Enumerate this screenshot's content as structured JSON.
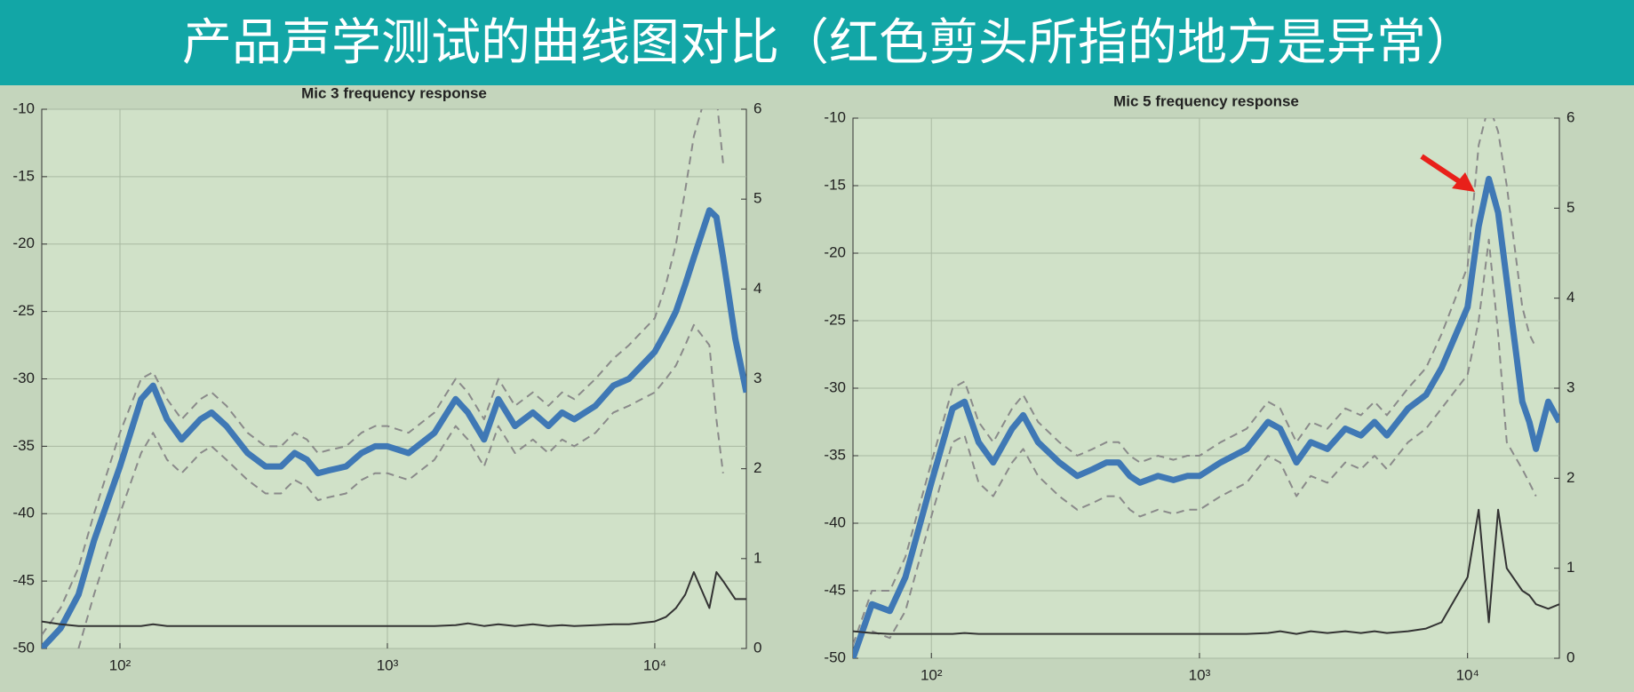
{
  "header": {
    "title": "产品声学测试的曲线图对比（红色剪头所指的地方是异常）"
  },
  "chart_data": [
    {
      "type": "line",
      "title": "Mic 3 frequency response",
      "log_x": true,
      "grid": true,
      "x": [
        51,
        60,
        70,
        80,
        100,
        120,
        133,
        150,
        170,
        200,
        220,
        250,
        300,
        350,
        400,
        450,
        500,
        550,
        600,
        700,
        800,
        900,
        1000,
        1200,
        1500,
        1800,
        2000,
        2300,
        2600,
        3000,
        3500,
        4000,
        4500,
        5000,
        6000,
        7000,
        8000,
        10000,
        11000,
        12000,
        13000,
        14000,
        16000,
        17000,
        18000,
        20000,
        22000
      ],
      "xlim": [
        51,
        22000
      ],
      "xticks": [
        {
          "value": 100,
          "label": "10²"
        },
        {
          "value": 1000,
          "label": "10³"
        },
        {
          "value": 10000,
          "label": "10⁴"
        }
      ],
      "ylim": [
        -50,
        -10
      ],
      "yticks": [
        -50,
        -45,
        -40,
        -35,
        -30,
        -25,
        -20,
        -15,
        -10
      ],
      "y2lim": [
        0,
        6
      ],
      "y2ticks": [
        0,
        1,
        2,
        3,
        4,
        5,
        6
      ],
      "series": [
        {
          "color": "#3f78b5",
          "dash": false,
          "values": [
            -50,
            -48.5,
            -46,
            -42,
            -36.5,
            -31.5,
            -30.5,
            -33,
            -34.5,
            -33,
            -32.5,
            -33.5,
            -35.5,
            -36.5,
            -36.5,
            -35.5,
            -36,
            -37,
            -36.8,
            -36.5,
            -35.5,
            -35,
            -35,
            -35.5,
            -34,
            -31.5,
            -32.5,
            -34.5,
            -31.5,
            -33.5,
            -32.5,
            -33.5,
            -32.5,
            -33,
            -32,
            -30.5,
            -30,
            -28,
            -26.5,
            -25,
            -23,
            -21,
            -17.5,
            -18,
            -21,
            -27,
            -31
          ]
        },
        {
          "color": "#8a8a8a",
          "dash": true,
          "values": [
            -49,
            -47,
            -44,
            -40,
            -34,
            -30,
            -29.5,
            -31.5,
            -33,
            -31.5,
            -31,
            -32,
            -34,
            -35,
            -35,
            -34,
            -34.5,
            -35.5,
            -35.3,
            -35,
            -34,
            -33.5,
            -33.5,
            -34,
            -32.5,
            -30,
            -31,
            -33,
            -30,
            -32,
            -31,
            -32,
            -31,
            -31.5,
            -30,
            -28.5,
            -27.5,
            -25.5,
            -23,
            -20,
            -16,
            -12,
            -8,
            -9,
            -14,
            null,
            null
          ]
        },
        {
          "color": "#8a8a8a",
          "dash": true,
          "values": [
            null,
            null,
            -50,
            -46,
            -40,
            -35.5,
            -34,
            -36,
            -37,
            -35.5,
            -35,
            -36,
            -37.5,
            -38.5,
            -38.5,
            -37.5,
            -38,
            -39,
            -38.8,
            -38.5,
            -37.5,
            -37,
            -37,
            -37.5,
            -36,
            -33.5,
            -34.5,
            -36.5,
            -33.5,
            -35.5,
            -34.5,
            -35.5,
            -34.5,
            -35,
            -34,
            -32.5,
            -32,
            -31,
            -30,
            -29,
            -27.5,
            -26,
            -27.5,
            -33,
            -37,
            null,
            null
          ]
        },
        {
          "color": "#333333",
          "dash": false,
          "axis": "y2",
          "values": [
            0.3,
            0.27,
            0.25,
            0.25,
            0.25,
            0.25,
            0.27,
            0.25,
            0.25,
            0.25,
            0.25,
            0.25,
            0.25,
            0.25,
            0.25,
            0.25,
            0.25,
            0.25,
            0.25,
            0.25,
            0.25,
            0.25,
            0.25,
            0.25,
            0.25,
            0.26,
            0.28,
            0.25,
            0.27,
            0.25,
            0.27,
            0.25,
            0.26,
            0.25,
            0.26,
            0.27,
            0.27,
            0.3,
            0.35,
            0.45,
            0.6,
            0.85,
            0.45,
            0.85,
            0.75,
            0.55,
            0.55
          ]
        }
      ]
    },
    {
      "type": "line",
      "title": "Mic 5 frequency response",
      "log_x": true,
      "grid": true,
      "x": [
        51,
        60,
        70,
        80,
        100,
        120,
        133,
        150,
        170,
        200,
        220,
        250,
        300,
        350,
        400,
        450,
        500,
        550,
        600,
        700,
        800,
        900,
        1000,
        1200,
        1500,
        1800,
        2000,
        2300,
        2600,
        3000,
        3500,
        4000,
        4500,
        5000,
        6000,
        7000,
        8000,
        10000,
        11000,
        12000,
        13000,
        14000,
        16000,
        17000,
        18000,
        20000,
        22000
      ],
      "xlim": [
        51,
        22000
      ],
      "xticks": [
        {
          "value": 100,
          "label": "10²"
        },
        {
          "value": 1000,
          "label": "10³"
        },
        {
          "value": 10000,
          "label": "10⁴"
        }
      ],
      "ylim": [
        -50,
        -10
      ],
      "yticks": [
        -50,
        -45,
        -40,
        -35,
        -30,
        -25,
        -20,
        -15,
        -10
      ],
      "y2lim": [
        0,
        6
      ],
      "y2ticks": [
        0,
        1,
        2,
        3,
        4,
        5,
        6
      ],
      "series": [
        {
          "color": "#3f78b5",
          "dash": false,
          "values": [
            -50,
            -46,
            -46.5,
            -44,
            -37,
            -31.5,
            -31,
            -34,
            -35.5,
            -33,
            -32,
            -34,
            -35.5,
            -36.5,
            -36,
            -35.5,
            -35.5,
            -36.5,
            -37,
            -36.5,
            -36.8,
            -36.5,
            -36.5,
            -35.5,
            -34.5,
            -32.5,
            -33,
            -35.5,
            -34,
            -34.5,
            -33,
            -33.5,
            -32.5,
            -33.5,
            -31.5,
            -30.5,
            -28.5,
            -24,
            -18,
            -14.5,
            -17,
            -22,
            -31,
            -32.5,
            -34.5,
            -31,
            -32.5
          ]
        },
        {
          "color": "#8a8a8a",
          "dash": true,
          "values": [
            -49,
            -45,
            -45,
            -42.5,
            -35.5,
            -30,
            -29.5,
            -32.5,
            -34,
            -31.5,
            -30.5,
            -32.5,
            -34,
            -35,
            -34.5,
            -34,
            -34,
            -35,
            -35.5,
            -35,
            -35.3,
            -35,
            -35,
            -34,
            -33,
            -31,
            -31.5,
            -34,
            -32.5,
            -33,
            -31.5,
            -32,
            -31,
            -32,
            -30,
            -28.5,
            -26,
            -21,
            -12,
            -9,
            -11,
            -15,
            -24,
            -26,
            -27,
            null,
            null
          ]
        },
        {
          "color": "#8a8a8a",
          "dash": true,
          "values": [
            null,
            -48,
            -48.5,
            -46.5,
            -39.5,
            -34,
            -33.5,
            -37,
            -38,
            -35.5,
            -34.5,
            -36.5,
            -38,
            -39,
            -38.5,
            -38,
            -38,
            -39,
            -39.5,
            -39,
            -39.3,
            -39,
            -39,
            -38,
            -37,
            -35,
            -35.5,
            -38,
            -36.5,
            -37,
            -35.5,
            -36,
            -35,
            -36,
            -34,
            -33,
            -31.5,
            -29,
            -25,
            -19,
            -26,
            -34,
            -36,
            -37,
            -38,
            null,
            null
          ]
        },
        {
          "color": "#333333",
          "dash": false,
          "axis": "y2",
          "values": [
            0.3,
            0.28,
            0.27,
            0.27,
            0.27,
            0.27,
            0.28,
            0.27,
            0.27,
            0.27,
            0.27,
            0.27,
            0.27,
            0.27,
            0.27,
            0.27,
            0.27,
            0.27,
            0.27,
            0.27,
            0.27,
            0.27,
            0.27,
            0.27,
            0.27,
            0.28,
            0.3,
            0.27,
            0.3,
            0.28,
            0.3,
            0.28,
            0.3,
            0.28,
            0.3,
            0.33,
            0.4,
            0.9,
            1.65,
            0.4,
            1.65,
            1.0,
            0.75,
            0.7,
            0.6,
            0.55,
            0.6
          ]
        }
      ]
    }
  ]
}
